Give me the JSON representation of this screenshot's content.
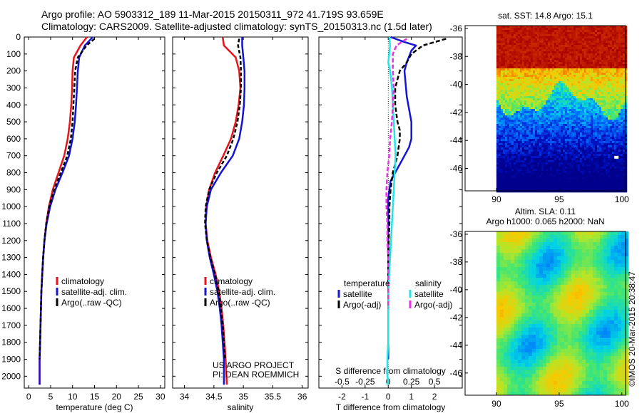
{
  "header": {
    "line1": "Argo profile: AO 5903312_189 11-Mar-2015 20150311_972 41.719S 93.659E",
    "line2": "Climatology: CARS2009. Satellite-adjusted climatology: synTS_20150313.nc (1.5d later)"
  },
  "colors": {
    "climatology": "#e8141c",
    "satellite": "#1414d4",
    "argo": "#000000",
    "satellite_s": "#22e6e6",
    "argo_s": "#e632e6"
  },
  "chart_data": [
    {
      "id": "temperature",
      "type": "line",
      "xlabel": "temperature (deg C)",
      "ylabel": "",
      "xlim": [
        -1,
        31
      ],
      "ylim": [
        2070,
        0
      ],
      "xticks": [
        0,
        5,
        10,
        15,
        20,
        25,
        30
      ],
      "yticks": [
        0,
        100,
        200,
        300,
        400,
        500,
        600,
        700,
        800,
        900,
        1000,
        1100,
        1200,
        1300,
        1400,
        1500,
        1600,
        1700,
        1800,
        1900,
        2000
      ],
      "legend": {
        "position": "lower-center",
        "entries": [
          "climatology",
          "satellite-adj. clim.",
          "Argo(..raw -QC)"
        ]
      },
      "series": [
        {
          "name": "climatology",
          "color": "#e8141c",
          "dash": "",
          "x": [
            13.3,
            11.8,
            10.3,
            10.0,
            9.9,
            9.7,
            9.4,
            8.9,
            8.1,
            6.8,
            5.5,
            4.6,
            4.0,
            3.6,
            3.3,
            3.1,
            2.9,
            2.8,
            2.7,
            2.6,
            2.5,
            2.5
          ],
          "y": [
            0,
            50,
            120,
            200,
            300,
            400,
            500,
            600,
            700,
            800,
            900,
            1000,
            1100,
            1200,
            1300,
            1400,
            1500,
            1600,
            1700,
            1800,
            1900,
            2050
          ]
        },
        {
          "name": "satellite-adj. clim.",
          "color": "#1414d4",
          "dash": "",
          "x": [
            14.6,
            12.8,
            11.5,
            11.2,
            11.0,
            10.8,
            10.5,
            10.0,
            9.2,
            7.7,
            6.1,
            4.9,
            4.1,
            3.6,
            3.3,
            3.1,
            2.9,
            2.8,
            2.7,
            2.6,
            2.5,
            2.5
          ],
          "y": [
            0,
            50,
            120,
            200,
            300,
            400,
            500,
            600,
            700,
            800,
            900,
            1000,
            1100,
            1200,
            1300,
            1400,
            1500,
            1600,
            1700,
            1800,
            1900,
            2050
          ]
        },
        {
          "name": "Argo(..raw -QC)",
          "color": "#000000",
          "dash": "5,3",
          "x": [
            15.0,
            13.2,
            11.2,
            10.6,
            10.4,
            10.2,
            10.0,
            9.6,
            8.8,
            7.3,
            5.8,
            4.7,
            4.0,
            3.6,
            3.3,
            3.1,
            2.9,
            2.8,
            2.7,
            2.6,
            2.5
          ],
          "y": [
            10,
            50,
            120,
            200,
            300,
            400,
            500,
            600,
            700,
            800,
            900,
            1000,
            1100,
            1200,
            1300,
            1400,
            1500,
            1600,
            1700,
            1800,
            1900
          ]
        }
      ]
    },
    {
      "id": "salinity",
      "type": "line",
      "xlabel": "salinity",
      "ylabel": "",
      "xlim": [
        33.8,
        36.1
      ],
      "ylim": [
        2070,
        0
      ],
      "xticks": [
        34,
        34.5,
        35,
        35.5,
        36
      ],
      "legend": {
        "position": "lower-center",
        "entries": [
          "climatology",
          "satellite-adj. clim.",
          "Argo(..raw -QC)"
        ]
      },
      "annotation": [
        "US ARGO PROJECT",
        "PI: DEAN ROEMMICH"
      ],
      "series": [
        {
          "name": "climatology",
          "color": "#e8141c",
          "dash": "",
          "x": [
            34.65,
            34.67,
            34.87,
            34.93,
            34.95,
            34.92,
            34.87,
            34.79,
            34.66,
            34.52,
            34.42,
            34.37,
            34.36,
            34.39,
            34.45,
            34.53,
            34.59,
            34.63,
            34.66,
            34.68,
            34.7,
            34.72
          ],
          "y": [
            0,
            50,
            120,
            200,
            300,
            400,
            500,
            600,
            700,
            800,
            900,
            1000,
            1100,
            1200,
            1300,
            1400,
            1500,
            1600,
            1700,
            1800,
            1900,
            2050
          ]
        },
        {
          "name": "satellite-adj. clim.",
          "color": "#1414d4",
          "dash": "",
          "x": [
            34.98,
            34.98,
            35.0,
            35.02,
            35.02,
            35.01,
            34.98,
            34.93,
            34.82,
            34.62,
            34.45,
            34.38,
            34.36,
            34.38,
            34.43,
            34.5,
            34.56,
            34.6,
            34.63,
            34.65,
            34.67,
            34.67
          ],
          "y": [
            0,
            50,
            120,
            200,
            300,
            400,
            500,
            600,
            700,
            800,
            900,
            1000,
            1100,
            1200,
            1300,
            1400,
            1500,
            1600,
            1700,
            1800,
            1900,
            2050
          ]
        },
        {
          "name": "Argo(..raw -QC)",
          "color": "#000000",
          "dash": "5,3",
          "x": [
            34.93,
            34.91,
            34.95,
            34.96,
            34.96,
            34.94,
            34.9,
            34.83,
            34.72,
            34.55,
            34.42,
            34.36,
            34.35,
            34.38,
            34.44,
            34.52,
            34.58,
            34.62,
            34.65,
            34.67,
            34.69
          ],
          "y": [
            10,
            50,
            120,
            200,
            300,
            400,
            500,
            600,
            700,
            800,
            900,
            1000,
            1100,
            1200,
            1300,
            1400,
            1500,
            1600,
            1700,
            1800,
            1900
          ]
        }
      ]
    },
    {
      "id": "difference",
      "type": "line",
      "xlabel": "T difference from climatology",
      "ylabel": "",
      "top_xlabel": "S difference from climatology",
      "xlim": [
        -3,
        3.2
      ],
      "ylim": [
        2070,
        0
      ],
      "xticks": [
        -2,
        -1,
        0,
        1,
        2
      ],
      "s_ticks": [
        -0.5,
        -0.25,
        0,
        0.25,
        0.5
      ],
      "s_tick_labels": [
        "-0.5",
        "-0.25",
        "0",
        "0.25",
        "0.5"
      ],
      "legend": {
        "position": "lower-center",
        "headers": [
          "temperature",
          "salinity"
        ],
        "entries": [
          "satellite",
          "Argo(-adj)",
          "satellite",
          "Argo(-adj)"
        ]
      },
      "series": [
        {
          "name": "satellite",
          "group": "temperature",
          "color": "#1414d4",
          "dash": "",
          "x": [
            0.1,
            0.7,
            1.2,
            1.0,
            0.8,
            0.7,
            0.8,
            1.0,
            1.0,
            1.0,
            0.9,
            0.7,
            0.5,
            0.3,
            0.1,
            0.05,
            0.0,
            0.0,
            0.0,
            0.0,
            0.0,
            0.0,
            0.0,
            0.0,
            0.0,
            0.0,
            0.0,
            0.0,
            0.0
          ],
          "y": [
            0,
            30,
            50,
            80,
            150,
            200,
            350,
            500,
            550,
            600,
            650,
            700,
            750,
            800,
            850,
            900,
            950,
            1000,
            1050,
            1100,
            1150,
            1200,
            1300,
            1400,
            1500,
            1600,
            1700,
            1800,
            1900
          ]
        },
        {
          "name": "Argo(-adj)",
          "group": "temperature",
          "color": "#000000",
          "dash": "6,3",
          "x": [
            2.5,
            1.5,
            1.0,
            0.8,
            0.5,
            0.3,
            0.3,
            0.4,
            0.5,
            0.5,
            0.4,
            0.2,
            0.1,
            0.05,
            0.05,
            0.02,
            0.0,
            0.0,
            0.0,
            0.0
          ],
          "y": [
            10,
            50,
            100,
            150,
            200,
            300,
            400,
            500,
            550,
            600,
            700,
            800,
            900,
            1000,
            1100,
            1200,
            1300,
            1400,
            1500,
            1600
          ]
        },
        {
          "name": "satellite",
          "group": "salinity",
          "color": "#22e6e6",
          "dash": "",
          "x": [
            0.01,
            0.02,
            0.01,
            0.0,
            0.02,
            0.04,
            0.05,
            0.06,
            0.07,
            0.08,
            0.07,
            0.06,
            0.05,
            0.04,
            0.03,
            0.02,
            0.01,
            0.0,
            0.0,
            0.0,
            0.0,
            -0.01,
            -0.01,
            -0.01,
            -0.01,
            0.0
          ],
          "y": [
            0,
            50,
            100,
            150,
            200,
            300,
            400,
            500,
            600,
            700,
            800,
            900,
            1000,
            1100,
            1200,
            1300,
            1400,
            1500,
            1600,
            1700,
            1800,
            1900,
            2000,
            2050,
            1950,
            2030
          ]
        },
        {
          "name": "Argo(-adj)",
          "group": "salinity",
          "color": "#e632e6",
          "dash": "6,3",
          "x": [
            0.2,
            0.09,
            0.05,
            0.05,
            0.06,
            0.05,
            0.04,
            0.02,
            0.01,
            -0.01,
            -0.02,
            -0.02,
            -0.01,
            -0.01,
            0.0,
            0.0,
            0.0,
            0.0
          ],
          "y": [
            10,
            50,
            100,
            200,
            300,
            400,
            500,
            600,
            700,
            800,
            900,
            1000,
            1100,
            1200,
            1300,
            1400,
            1500,
            1600
          ]
        }
      ]
    },
    {
      "id": "sst-map",
      "type": "heatmap",
      "title": "sat. SST: 14.8 Argo: 15.1",
      "xlim": [
        87.5,
        100.3
      ],
      "ylim": [
        -47.6,
        -35.8
      ],
      "xticks": [
        90,
        95,
        100
      ],
      "yticks": [
        -36,
        -38,
        -40,
        -42,
        -44,
        -46
      ],
      "data_extent_x": [
        90,
        100.3
      ]
    },
    {
      "id": "sla-map",
      "type": "heatmap",
      "title": [
        "Altim. SLA: 0.11",
        "Argo h1000: 0.065 h2000: NaN"
      ],
      "xlim": [
        87.5,
        100.3
      ],
      "ylim": [
        -47.6,
        -35.8
      ],
      "xticks": [
        90,
        95,
        100
      ],
      "yticks": [
        -36,
        -38,
        -40,
        -42,
        -44,
        -46
      ],
      "data_extent_x": [
        90,
        100.3
      ]
    }
  ],
  "credit": "©IMOS 20-Mar-2015 20:38:47"
}
